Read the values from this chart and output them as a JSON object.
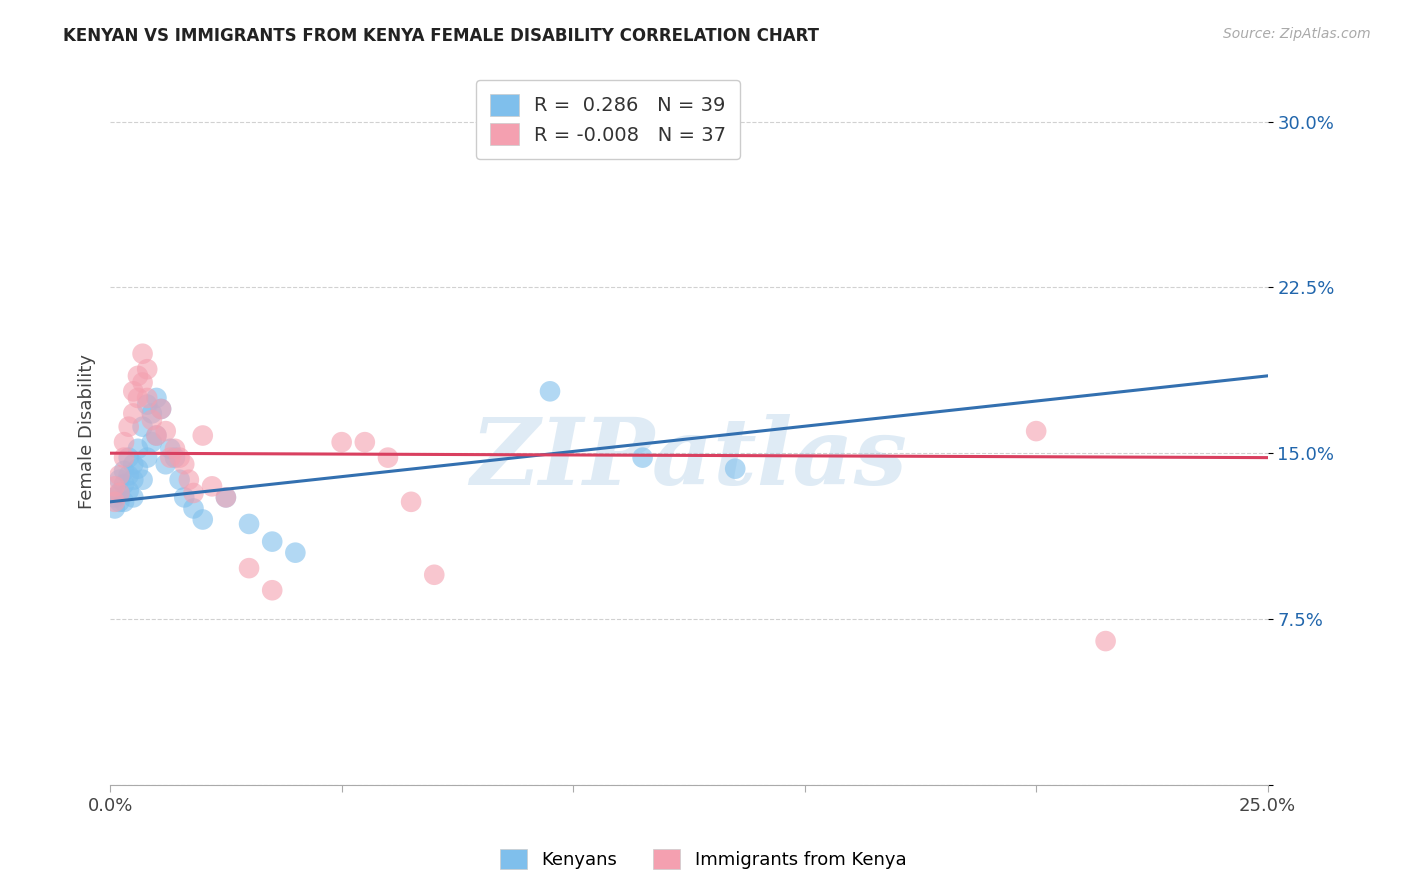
{
  "title": "KENYAN VS IMMIGRANTS FROM KENYA FEMALE DISABILITY CORRELATION CHART",
  "source": "Source: ZipAtlas.com",
  "ylabel": "Female Disability",
  "legend_label1": "Kenyans",
  "legend_label2": "Immigrants from Kenya",
  "r1": 0.286,
  "n1": 39,
  "r2": -0.008,
  "n2": 37,
  "xlim": [
    0.0,
    0.25
  ],
  "ylim": [
    0.0,
    0.32
  ],
  "xticks": [
    0.0,
    0.05,
    0.1,
    0.15,
    0.2,
    0.25
  ],
  "yticks": [
    0.0,
    0.075,
    0.15,
    0.225,
    0.3
  ],
  "ytick_labels": [
    "",
    "7.5%",
    "15.0%",
    "22.5%",
    "30.0%"
  ],
  "xtick_labels": [
    "0.0%",
    "",
    "",
    "",
    "",
    "25.0%"
  ],
  "blue_color": "#7fbfec",
  "pink_color": "#f4a0b0",
  "blue_line_color": "#3370b0",
  "pink_line_color": "#d94060",
  "watermark": "ZIPatlas",
  "blue_points_x": [
    0.001,
    0.001,
    0.002,
    0.002,
    0.002,
    0.003,
    0.003,
    0.003,
    0.004,
    0.004,
    0.004,
    0.005,
    0.005,
    0.005,
    0.006,
    0.006,
    0.007,
    0.007,
    0.008,
    0.008,
    0.009,
    0.009,
    0.01,
    0.01,
    0.011,
    0.012,
    0.013,
    0.014,
    0.015,
    0.016,
    0.018,
    0.02,
    0.025,
    0.03,
    0.035,
    0.04,
    0.095,
    0.115,
    0.135
  ],
  "blue_points_y": [
    0.13,
    0.125,
    0.138,
    0.132,
    0.128,
    0.142,
    0.136,
    0.128,
    0.148,
    0.14,
    0.133,
    0.145,
    0.138,
    0.13,
    0.152,
    0.143,
    0.162,
    0.138,
    0.172,
    0.148,
    0.168,
    0.155,
    0.175,
    0.158,
    0.17,
    0.145,
    0.152,
    0.148,
    0.138,
    0.13,
    0.125,
    0.12,
    0.13,
    0.118,
    0.11,
    0.105,
    0.178,
    0.148,
    0.143
  ],
  "pink_points_x": [
    0.001,
    0.001,
    0.002,
    0.002,
    0.003,
    0.003,
    0.004,
    0.005,
    0.005,
    0.006,
    0.006,
    0.007,
    0.007,
    0.008,
    0.008,
    0.009,
    0.01,
    0.011,
    0.012,
    0.013,
    0.014,
    0.015,
    0.016,
    0.017,
    0.018,
    0.02,
    0.022,
    0.025,
    0.03,
    0.035,
    0.05,
    0.055,
    0.06,
    0.065,
    0.07,
    0.2,
    0.215
  ],
  "pink_points_y": [
    0.135,
    0.128,
    0.14,
    0.132,
    0.148,
    0.155,
    0.162,
    0.168,
    0.178,
    0.175,
    0.185,
    0.182,
    0.195,
    0.188,
    0.175,
    0.165,
    0.158,
    0.17,
    0.16,
    0.148,
    0.152,
    0.148,
    0.145,
    0.138,
    0.132,
    0.158,
    0.135,
    0.13,
    0.098,
    0.088,
    0.155,
    0.155,
    0.148,
    0.128,
    0.095,
    0.16,
    0.065
  ],
  "blue_trendline_x": [
    0.0,
    0.25
  ],
  "blue_trendline_y": [
    0.128,
    0.185
  ],
  "pink_trendline_x": [
    0.0,
    0.25
  ],
  "pink_trendline_y": [
    0.15,
    0.148
  ]
}
